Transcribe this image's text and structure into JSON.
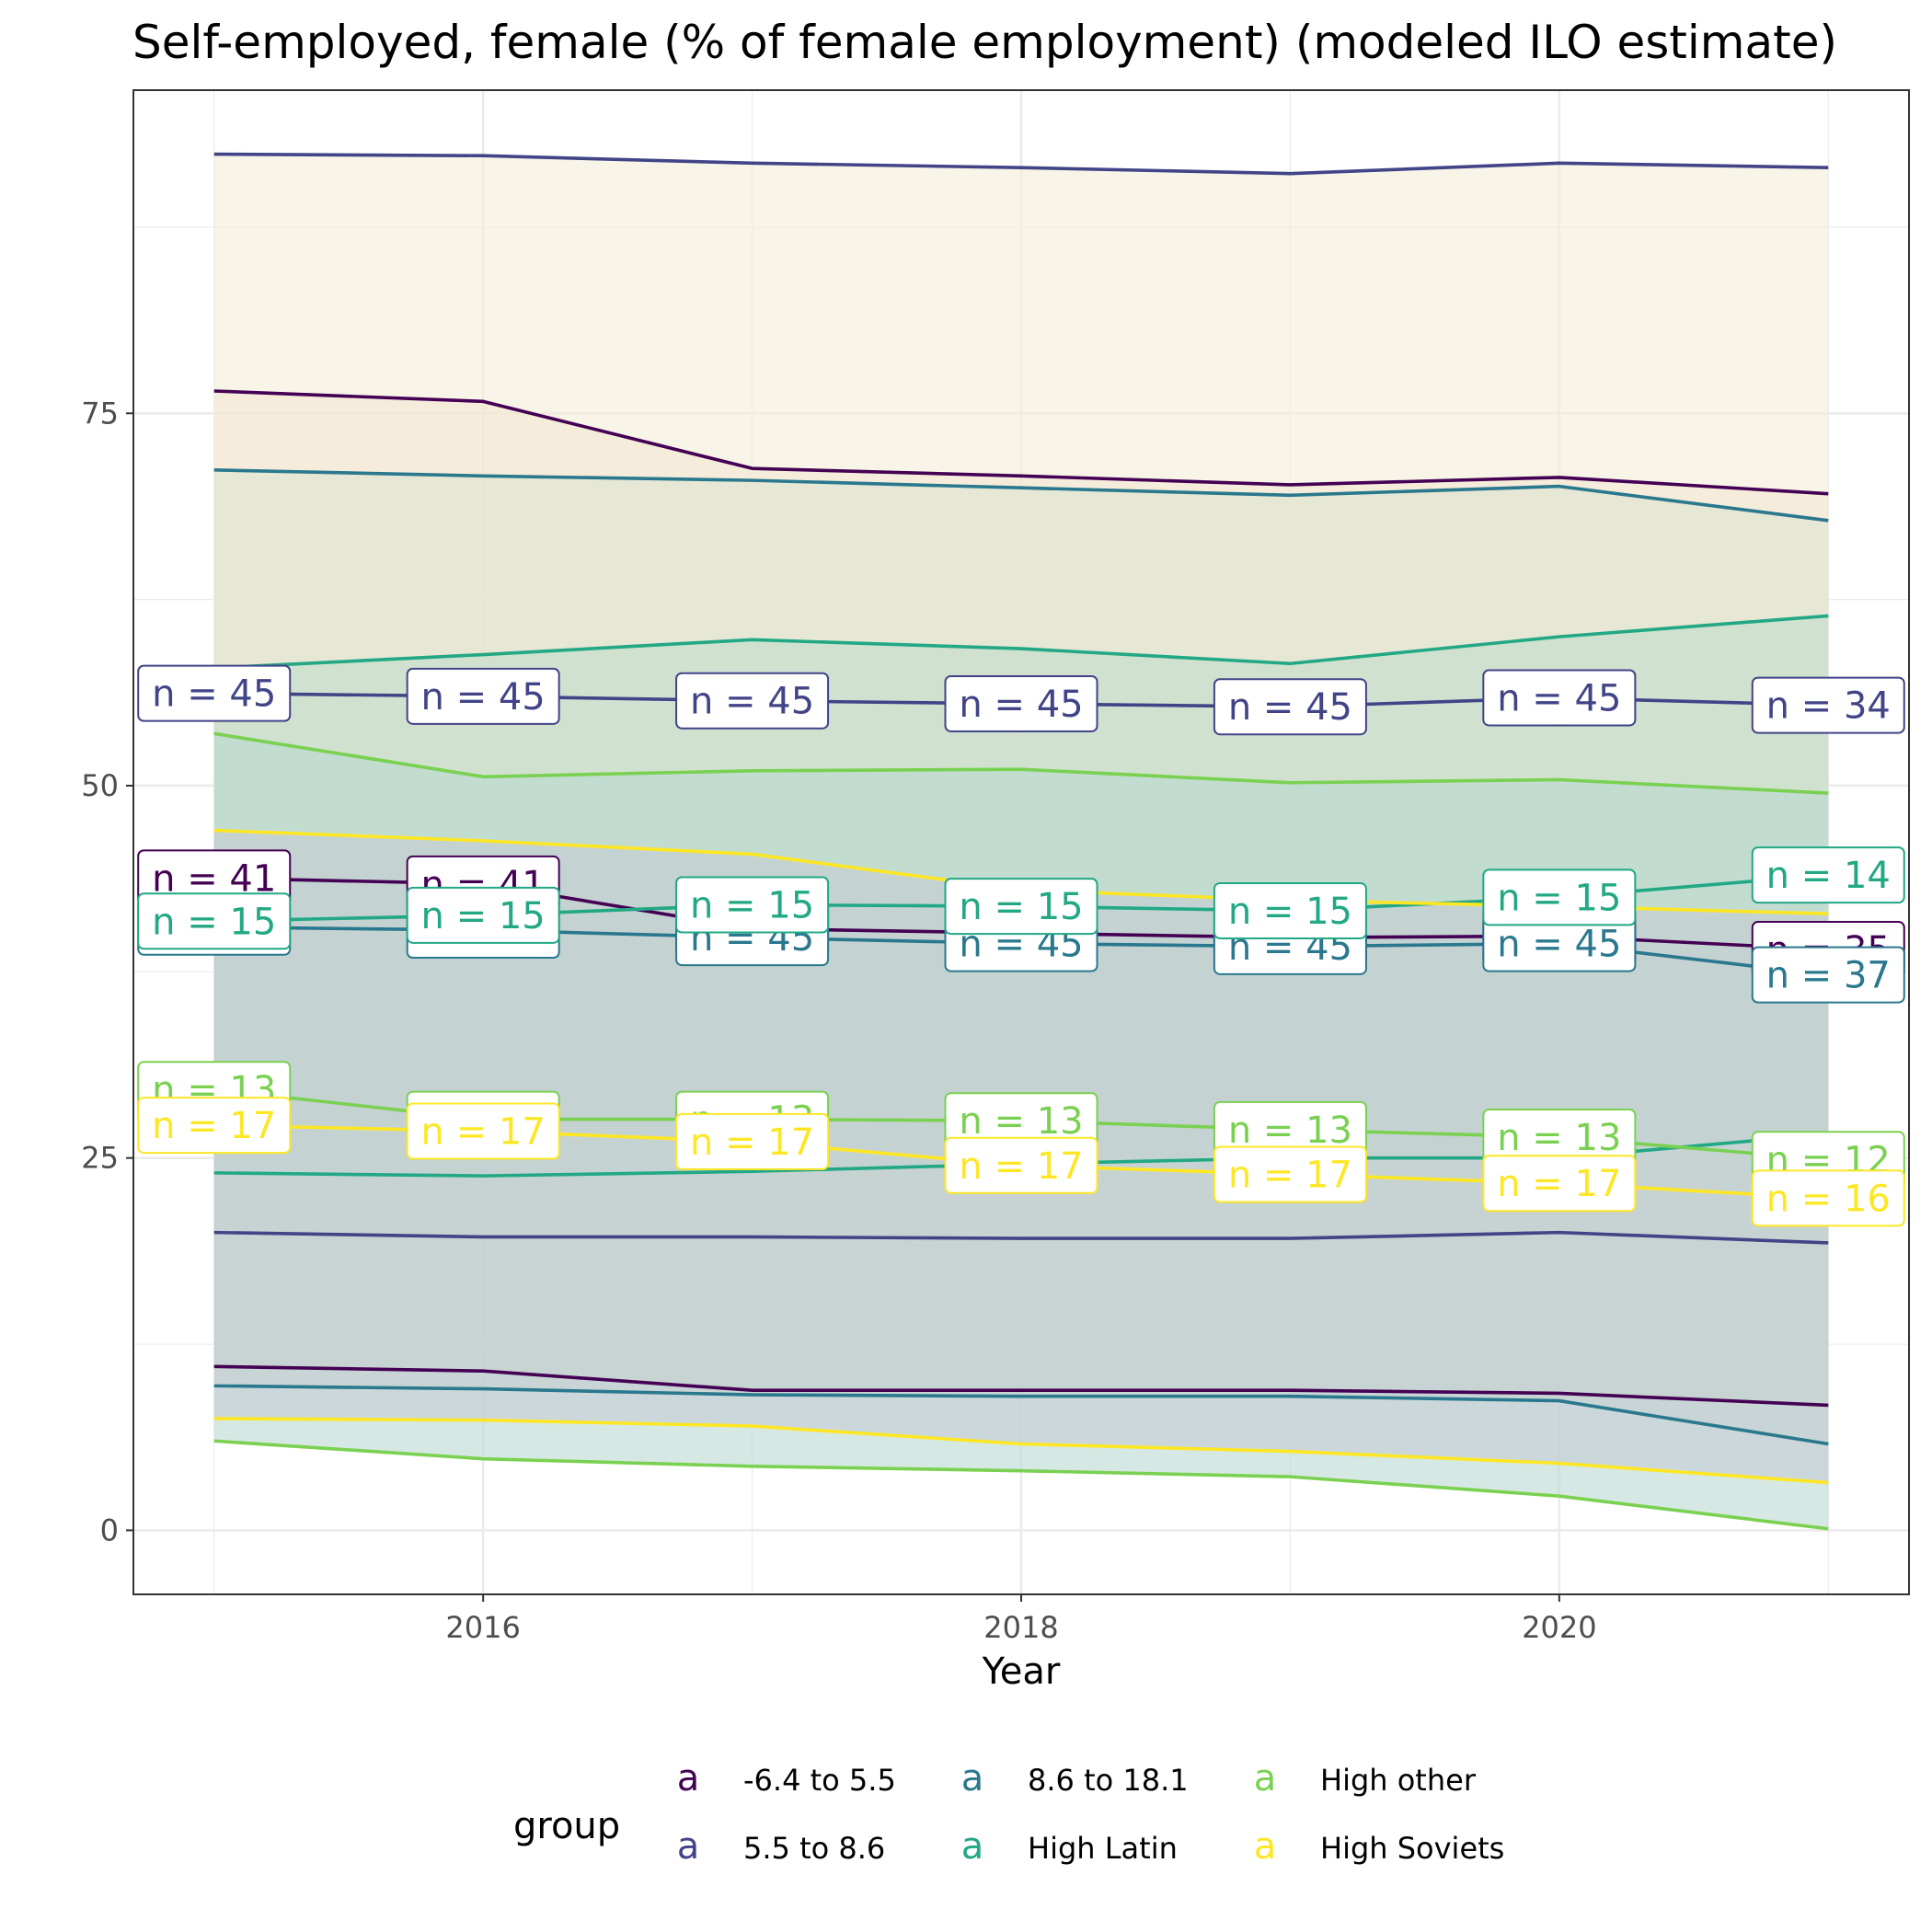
{
  "chart_data": {
    "type": "line",
    "title": "Self-employed, female (% of female employment) (modeled ILO estimate)",
    "xlabel": "Year",
    "ylabel": "",
    "x": [
      2015,
      2016,
      2017,
      2018,
      2019,
      2020,
      2021
    ],
    "xlim": [
      2014.7,
      2021.3
    ],
    "ylim": [
      -4.3,
      96.7
    ],
    "x_ticks": [
      2016,
      2018,
      2020
    ],
    "y_ticks": [
      0,
      25,
      50,
      75
    ],
    "grid": true,
    "legend": {
      "title": "group",
      "placement": "bottom",
      "key_glyph": "a",
      "entries": [
        {
          "label": "-6.4 to 5.5",
          "color": "#440154"
        },
        {
          "label": "5.5 to 8.6",
          "color": "#414487"
        },
        {
          "label": "8.6 to 18.1",
          "color": "#2A788E"
        },
        {
          "label": "High Latin",
          "color": "#22A884"
        },
        {
          "label": "High other",
          "color": "#7AD151"
        },
        {
          "label": "High Soviets",
          "color": "#FDE725"
        }
      ]
    },
    "series": [
      {
        "name": "-6.4 to 5.5",
        "color": "#440154",
        "ribbon_fill": "#f5dcc8",
        "upper": [
          76.5,
          75.8,
          71.3,
          70.8,
          70.2,
          70.7,
          69.6
        ],
        "mean": [
          43.8,
          43.4,
          40.4,
          40.1,
          39.8,
          39.9,
          39.0
        ],
        "lower": [
          11.0,
          10.7,
          9.4,
          9.4,
          9.4,
          9.2,
          8.4
        ],
        "labels": [
          "n = 41",
          "n = 41",
          "n = 45",
          "n = 45",
          "n = 45",
          "n = 45",
          "n = 35"
        ]
      },
      {
        "name": "5.5 to 8.6",
        "color": "#414487",
        "ribbon_fill": "#f3ecd8",
        "upper": [
          92.4,
          92.3,
          91.8,
          91.5,
          91.1,
          91.8,
          91.5
        ],
        "mean": [
          56.2,
          56.0,
          55.7,
          55.5,
          55.3,
          55.9,
          55.4
        ],
        "lower": [
          20.0,
          19.7,
          19.7,
          19.6,
          19.6,
          20.0,
          19.3
        ],
        "labels": [
          "n = 45",
          "n = 45",
          "n = 45",
          "n = 45",
          "n = 45",
          "n = 45",
          "n = 34"
        ]
      },
      {
        "name": "8.6 to 18.1",
        "color": "#2A788E",
        "ribbon_fill": "#dce4d0",
        "upper": [
          71.2,
          70.8,
          70.5,
          70.0,
          69.5,
          70.1,
          67.8
        ],
        "mean": [
          40.5,
          40.3,
          39.8,
          39.4,
          39.2,
          39.4,
          37.3
        ],
        "lower": [
          9.7,
          9.5,
          9.1,
          9.0,
          9.0,
          8.7,
          5.8
        ],
        "labels": [
          "n = 45",
          "n = 45",
          "n = 45",
          "n = 45",
          "n = 45",
          "n = 45",
          "n = 37"
        ]
      },
      {
        "name": "High Latin",
        "color": "#22A884",
        "ribbon_fill": "#c2e0cc",
        "upper": [
          57.9,
          58.8,
          59.8,
          59.2,
          58.2,
          60.0,
          61.4
        ],
        "mean": [
          40.9,
          41.3,
          42.0,
          41.9,
          41.6,
          42.5,
          44.0
        ],
        "lower": [
          24.0,
          23.8,
          24.1,
          24.6,
          25.0,
          25.0,
          26.6
        ],
        "labels": [
          "n = 15",
          "n = 15",
          "n = 15",
          "n = 15",
          "n = 15",
          "n = 15",
          "n = 14"
        ]
      },
      {
        "name": "High other",
        "color": "#7AD151",
        "ribbon_fill": "#b9d8d0",
        "upper": [
          53.5,
          50.6,
          51.0,
          51.1,
          50.2,
          50.4,
          49.5
        ],
        "mean": [
          29.6,
          27.6,
          27.6,
          27.5,
          26.9,
          26.4,
          24.9
        ],
        "lower": [
          6.0,
          4.8,
          4.3,
          4.0,
          3.6,
          2.3,
          0.1
        ],
        "labels": [
          "n = 13",
          "n = 13",
          "n = 13",
          "n = 13",
          "n = 13",
          "n = 13",
          "n = 12"
        ]
      },
      {
        "name": "High Soviets",
        "color": "#FDE725",
        "ribbon_fill": "#c5cbd3",
        "upper": [
          47.0,
          46.3,
          45.4,
          43.0,
          42.3,
          41.9,
          41.4
        ],
        "mean": [
          27.2,
          26.8,
          26.1,
          24.5,
          23.9,
          23.3,
          22.3
        ],
        "lower": [
          7.5,
          7.4,
          7.0,
          5.8,
          5.3,
          4.5,
          3.2
        ],
        "labels": [
          "n = 17",
          "n = 17",
          "n = 17",
          "n = 17",
          "n = 17",
          "n = 17",
          "n = 16"
        ]
      }
    ]
  }
}
